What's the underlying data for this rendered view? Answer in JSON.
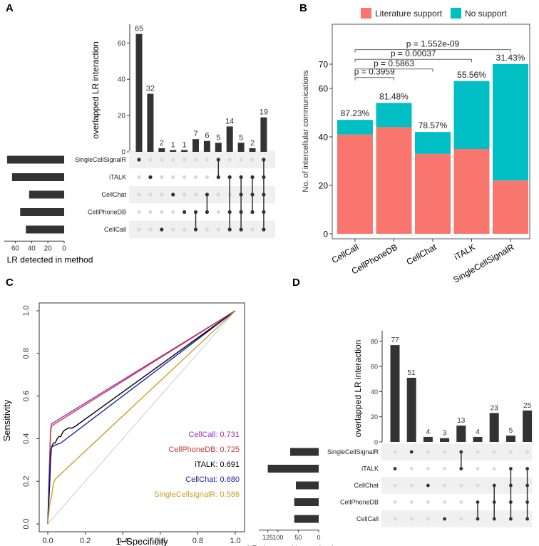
{
  "panel_letters": {
    "a": "A",
    "b": "B",
    "c": "C",
    "d": "D"
  },
  "colors": {
    "bar": "#333333",
    "dot_on": "#333333",
    "dot_off": "#d9d9d9",
    "stripe": "#f0f0f0",
    "literature": "#F8766D",
    "nosupport": "#00BFC4",
    "diag": "#cccccc",
    "callcall": "#9b30c8",
    "cellphonedb": "#c83c3c",
    "italk": "#000000",
    "cellchat": "#1f1fa8",
    "singlecell": "#c9a227"
  },
  "chart_data": [
    {
      "id": "A",
      "type": "upset",
      "ylabel": "overlapped LR interaction",
      "y_ticks": [
        "0",
        "20",
        "40",
        "60"
      ],
      "ylim": [
        0,
        68
      ],
      "sets": [
        "SingleCellSignalR",
        "iTALK",
        "CellChat",
        "CellPhoneDB",
        "CellCall"
      ],
      "set_sizes": [
        70,
        64,
        43,
        54,
        47
      ],
      "set_size_ticks": [
        "60",
        "40",
        "20",
        "0"
      ],
      "set_size_max": 70,
      "set_size_label": "LR detected in method",
      "intersections": [
        {
          "value": 65,
          "label": "65",
          "members": [
            0
          ]
        },
        {
          "value": 32,
          "label": "32",
          "members": [
            1
          ]
        },
        {
          "value": 2,
          "label": "2",
          "members": [
            4
          ]
        },
        {
          "value": 1,
          "label": "1",
          "members": [
            2
          ]
        },
        {
          "value": 1,
          "label": "1",
          "members": [
            3
          ]
        },
        {
          "value": 7,
          "label": "7",
          "members": [
            3,
            4
          ]
        },
        {
          "value": 6,
          "label": "6",
          "members": [
            2,
            3
          ]
        },
        {
          "value": 5,
          "label": "5",
          "members": [
            0,
            1
          ]
        },
        {
          "value": 14,
          "label": "14",
          "members": [
            1,
            3,
            4
          ]
        },
        {
          "value": 5,
          "label": "5",
          "members": [
            1,
            2,
            3,
            4
          ]
        },
        {
          "value": 2,
          "label": "2",
          "members": [
            1,
            2,
            3
          ]
        },
        {
          "value": 19,
          "label": "19",
          "members": [
            0,
            1,
            2,
            3,
            4
          ]
        }
      ]
    },
    {
      "id": "B",
      "type": "stacked-bar",
      "categories": [
        "CellCall",
        "CellPhoneDB",
        "CellChat",
        "iTALK",
        "SingleCellSignalR"
      ],
      "series": [
        {
          "name": "Literature support",
          "values": [
            41,
            44,
            33,
            35,
            22
          ]
        },
        {
          "name": "No support",
          "values": [
            6,
            10,
            9,
            28,
            48
          ]
        }
      ],
      "percent_labels": [
        "87.23%",
        "81.48%",
        "78.57%",
        "55.56%",
        "31.43%"
      ],
      "ylabel": "No. of intercellular communications",
      "ylim": [
        0,
        78
      ],
      "y_ticks": [
        "0",
        "20",
        "40",
        "60",
        "70"
      ],
      "legend": [
        "Literature support",
        "No support"
      ],
      "comparisons": [
        {
          "from": 0,
          "to": 1,
          "y": 64.5,
          "label": "p = 0.3959"
        },
        {
          "from": 0,
          "to": 2,
          "y": 68,
          "label": "p = 0.5863"
        },
        {
          "from": 0,
          "to": 3,
          "y": 72,
          "label": "p = 0.00037"
        },
        {
          "from": 0,
          "to": 4,
          "y": 76,
          "label": "p = 1.552e-09"
        }
      ]
    },
    {
      "id": "C",
      "type": "line",
      "xlabel": "1−Specificity",
      "ylabel": "Sensitivity",
      "xlim": [
        0,
        1
      ],
      "ylim": [
        0,
        1
      ],
      "x_ticks": [
        "0.0",
        "0.2",
        "0.4",
        "0.6",
        "0.8",
        "1.0"
      ],
      "y_ticks": [
        "0.0",
        "0.2",
        "0.4",
        "0.6",
        "0.8",
        "1.0"
      ],
      "series": [
        {
          "name": "CellCall",
          "auc": "CellCall: 0.731",
          "color": "#9b30c8",
          "points": [
            [
              0,
              0
            ],
            [
              0.01,
              0.3
            ],
            [
              0.015,
              0.44
            ],
            [
              0.02,
              0.47
            ],
            [
              1,
              1
            ]
          ]
        },
        {
          "name": "CellPhoneDB",
          "auc": "CellPhoneDB: 0.725",
          "color": "#c83c3c",
          "points": [
            [
              0,
              0
            ],
            [
              0.01,
              0.28
            ],
            [
              0.015,
              0.43
            ],
            [
              0.02,
              0.46
            ],
            [
              1,
              1
            ]
          ]
        },
        {
          "name": "iTALK",
          "auc": "iTALK: 0.691",
          "color": "#000000",
          "points": [
            [
              0,
              0
            ],
            [
              0.01,
              0.18
            ],
            [
              0.015,
              0.3
            ],
            [
              0.02,
              0.36
            ],
            [
              0.03,
              0.38
            ],
            [
              0.04,
              0.38
            ],
            [
              0.05,
              0.4
            ],
            [
              0.06,
              0.41
            ],
            [
              0.07,
              0.41
            ],
            [
              0.08,
              0.43
            ],
            [
              0.09,
              0.44
            ],
            [
              0.11,
              0.45
            ],
            [
              0.13,
              0.45
            ],
            [
              0.15,
              0.46
            ],
            [
              1,
              1
            ]
          ]
        },
        {
          "name": "CellChat",
          "auc": "CellChat: 0.680",
          "color": "#1f1fa8",
          "points": [
            [
              0,
              0
            ],
            [
              0.01,
              0.26
            ],
            [
              0.015,
              0.33
            ],
            [
              0.02,
              0.36
            ],
            [
              0.04,
              0.37
            ],
            [
              0.07,
              0.38
            ],
            [
              1,
              1
            ]
          ]
        },
        {
          "name": "SingleCellsignalR",
          "auc": "SingleCellsignalR: 0.586",
          "color": "#c9a227",
          "points": [
            [
              0,
              0
            ],
            [
              0.01,
              0.09
            ],
            [
              0.02,
              0.13
            ],
            [
              0.03,
              0.19
            ],
            [
              0.04,
              0.21
            ],
            [
              1,
              1
            ]
          ]
        }
      ],
      "diagonal": true
    },
    {
      "id": "D",
      "type": "upset",
      "ylabel": "overlapped LR interaction",
      "y_ticks": [
        "0",
        "20",
        "40",
        "60",
        "80"
      ],
      "ylim": [
        0,
        85
      ],
      "sets": [
        "SingleCellSignalR",
        "iTALK",
        "CellChat",
        "CellPhoneDB",
        "CellCall"
      ],
      "set_sizes": [
        70,
        125,
        56,
        60,
        60
      ],
      "set_size_ticks": [
        "125",
        "100",
        "50",
        "0"
      ],
      "set_size_tick_values": [
        125,
        100,
        50,
        0
      ],
      "set_size_max": 140,
      "set_size_label": "LR detected in method",
      "intersections": [
        {
          "value": 77,
          "label": "77",
          "members": [
            1
          ]
        },
        {
          "value": 51,
          "label": "51",
          "members": [
            0
          ]
        },
        {
          "value": 4,
          "label": "4",
          "members": [
            2
          ]
        },
        {
          "value": 3,
          "label": "3",
          "members": [
            4
          ]
        },
        {
          "value": 13,
          "label": "13",
          "members": [
            0,
            1
          ]
        },
        {
          "value": 4,
          "label": "4",
          "members": [
            3,
            4
          ]
        },
        {
          "value": 23,
          "label": "23",
          "members": [
            2,
            3,
            4
          ]
        },
        {
          "value": 5,
          "label": "5",
          "members": [
            1,
            2,
            3,
            4
          ]
        },
        {
          "value": 25,
          "label": "25",
          "members": [
            1,
            2,
            3,
            4
          ]
        }
      ]
    }
  ]
}
